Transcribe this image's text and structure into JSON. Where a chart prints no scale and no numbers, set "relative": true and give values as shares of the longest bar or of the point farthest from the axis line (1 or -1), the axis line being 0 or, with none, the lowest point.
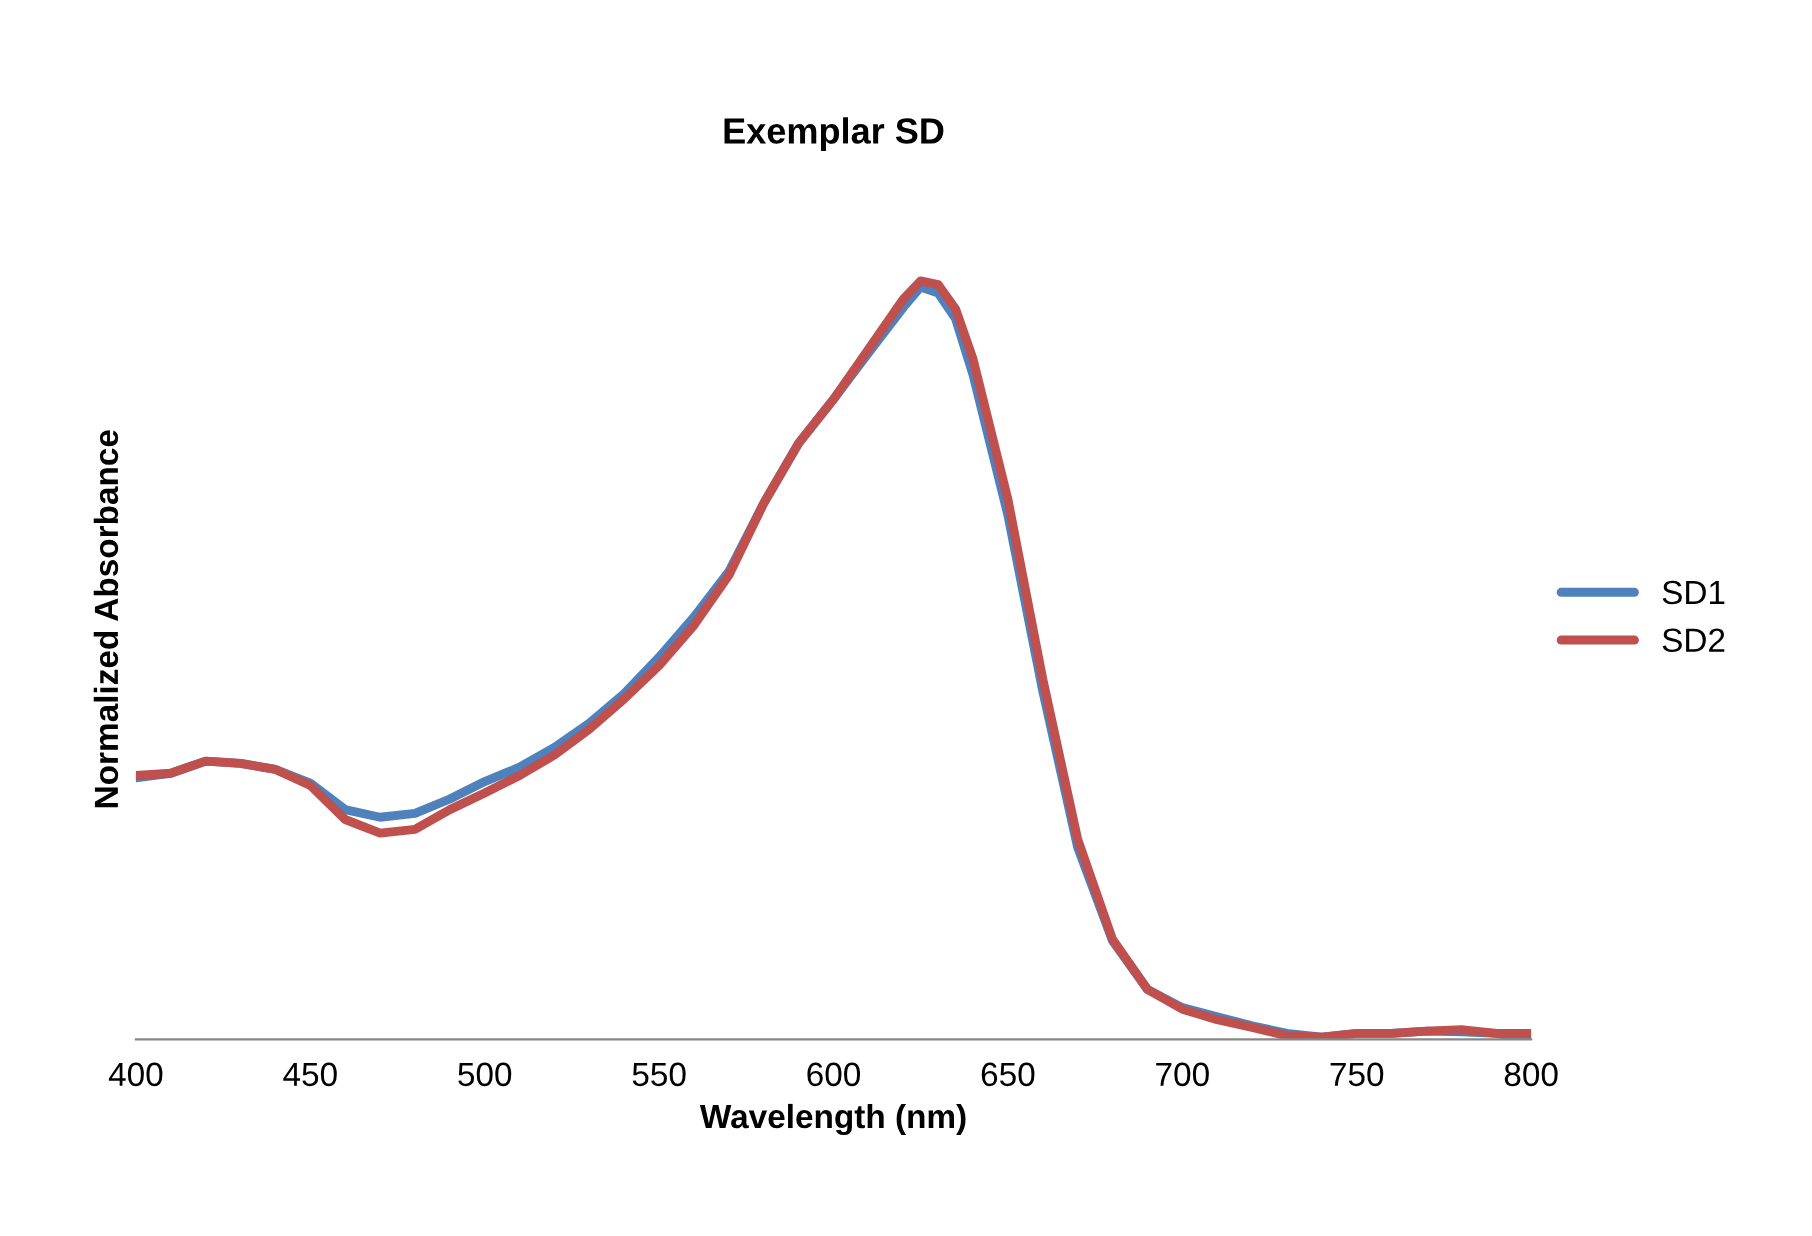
{
  "chart_data": {
    "type": "line",
    "title": "Exemplar SD",
    "xlabel": "Wavelength (nm)",
    "ylabel": "Normalized Absorbance",
    "relative": true,
    "xlim": [
      400,
      800
    ],
    "xticks": [
      400,
      450,
      500,
      550,
      600,
      650,
      700,
      750,
      800
    ],
    "legend": "right",
    "grid": false,
    "marker": "none",
    "line_style": "solid",
    "tick_labels": "x",
    "x": [
      400,
      410,
      420,
      430,
      440,
      450,
      460,
      470,
      480,
      490,
      500,
      510,
      520,
      530,
      540,
      550,
      560,
      570,
      580,
      590,
      600,
      610,
      620,
      625,
      630,
      635,
      640,
      650,
      660,
      670,
      680,
      690,
      700,
      710,
      720,
      730,
      740,
      750,
      760,
      770,
      780,
      790,
      800
    ],
    "series": [
      {
        "name": "SD1",
        "color": "#4f81bd",
        "values": [
          0.345,
          0.351,
          0.367,
          0.364,
          0.356,
          0.338,
          0.303,
          0.293,
          0.298,
          0.317,
          0.34,
          0.359,
          0.385,
          0.417,
          0.456,
          0.504,
          0.557,
          0.617,
          0.707,
          0.786,
          0.844,
          0.905,
          0.965,
          0.992,
          0.984,
          0.95,
          0.876,
          0.691,
          0.459,
          0.253,
          0.13,
          0.066,
          0.042,
          0.03,
          0.018,
          0.008,
          0.003,
          0.008,
          0.008,
          0.011,
          0.01,
          0.008,
          0.0
        ]
      },
      {
        "name": "SD2",
        "color": "#c0504d",
        "values": [
          0.348,
          0.351,
          0.367,
          0.364,
          0.356,
          0.335,
          0.29,
          0.272,
          0.277,
          0.303,
          0.325,
          0.348,
          0.375,
          0.409,
          0.449,
          0.493,
          0.546,
          0.612,
          0.707,
          0.786,
          0.844,
          0.91,
          0.976,
          1.0,
          0.995,
          0.963,
          0.897,
          0.712,
          0.475,
          0.264,
          0.132,
          0.066,
          0.04,
          0.026,
          0.016,
          0.005,
          0.003,
          0.008,
          0.008,
          0.011,
          0.013,
          0.008,
          0.008
        ]
      }
    ]
  }
}
